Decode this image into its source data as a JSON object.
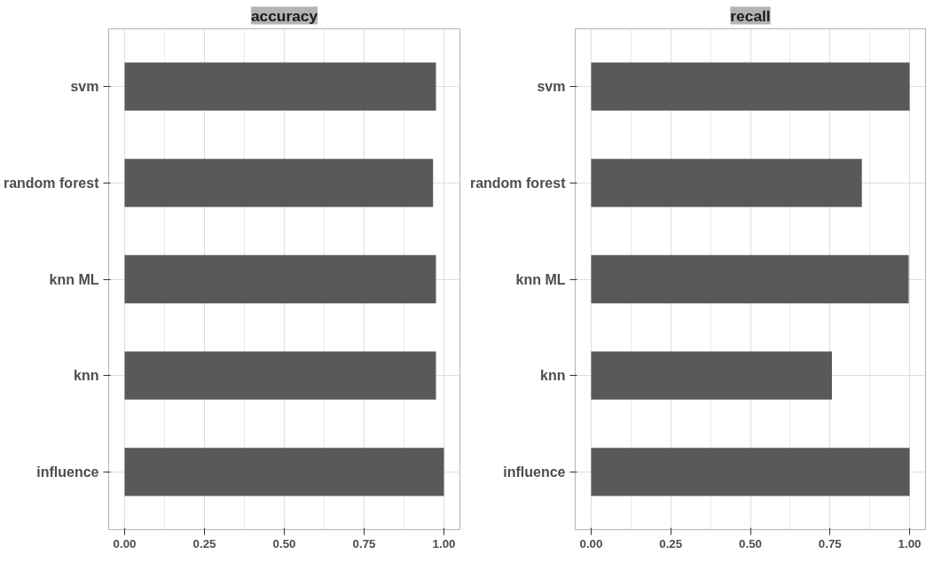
{
  "chart_data": [
    {
      "type": "bar",
      "orientation": "horizontal",
      "title": "accuracy",
      "categories": [
        "svm",
        "random forest",
        "knn ML",
        "knn",
        "influence"
      ],
      "values": [
        0.975,
        0.966,
        0.975,
        0.975,
        1.0
      ],
      "color": "#595959",
      "xlim": [
        -0.05,
        1.05
      ],
      "xticks": [
        {
          "value": 0,
          "label": "0.00"
        },
        {
          "value": 0.25,
          "label": "0.25"
        },
        {
          "value": 0.5,
          "label": "0.50"
        },
        {
          "value": 0.75,
          "label": "0.75"
        },
        {
          "value": 1,
          "label": "1.00"
        }
      ],
      "grid": true
    },
    {
      "type": "bar",
      "orientation": "horizontal",
      "title": "recall",
      "categories": [
        "svm",
        "random forest",
        "knn ML",
        "knn",
        "influence"
      ],
      "values": [
        1.0,
        0.85,
        0.997,
        0.756,
        1.0
      ],
      "color": "#595959",
      "xlim": [
        -0.05,
        1.05
      ],
      "xticks": [
        {
          "value": 0,
          "label": "0.00"
        },
        {
          "value": 0.25,
          "label": "0.25"
        },
        {
          "value": 0.5,
          "label": "0.50"
        },
        {
          "value": 0.75,
          "label": "0.75"
        },
        {
          "value": 1,
          "label": "1.00"
        }
      ],
      "grid": true
    }
  ]
}
